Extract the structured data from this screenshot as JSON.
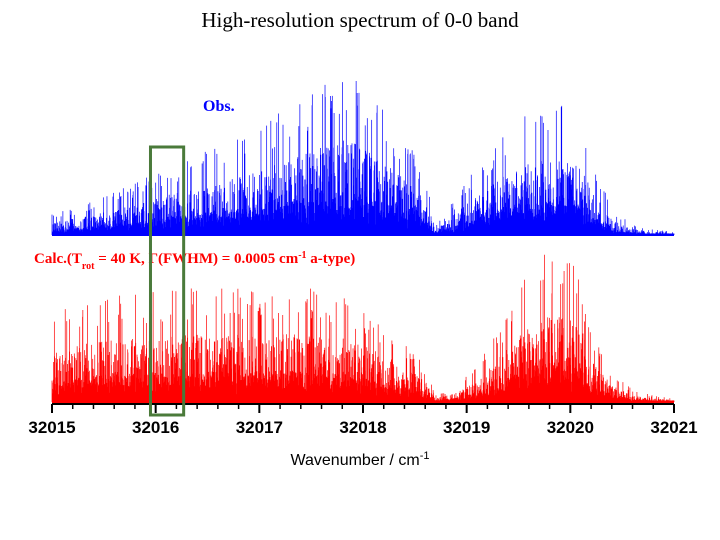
{
  "chart_data": {
    "type": "line",
    "title": "High-resolution spectrum of 0-0 band",
    "xlabel": "Wavenumber / cm",
    "xlabel_sup": "-1",
    "xlim": [
      32015,
      32021
    ],
    "x_ticks": [
      "32015",
      "32016",
      "32017",
      "32018",
      "32019",
      "32020",
      "32021"
    ],
    "y_axis_shown": false,
    "grid": false,
    "series": [
      {
        "name": "Obs.",
        "color": "#0000ff",
        "envelope": {
          "x": [
            32015.0,
            32015.3,
            32015.6,
            32015.9,
            32016.2,
            32016.5,
            32016.8,
            32017.0,
            32017.2,
            32017.4,
            32017.6,
            32017.8,
            32018.0,
            32018.2,
            32018.4,
            32018.6,
            32018.7,
            32018.9,
            32019.1,
            32019.3,
            32019.5,
            32019.7,
            32019.9,
            32020.1,
            32020.2,
            32020.4,
            32020.6,
            32020.8,
            32021.0
          ],
          "y": [
            0.12,
            0.18,
            0.25,
            0.33,
            0.42,
            0.5,
            0.58,
            0.62,
            0.72,
            0.8,
            0.88,
            0.95,
            0.88,
            0.72,
            0.55,
            0.38,
            0.06,
            0.22,
            0.4,
            0.55,
            0.66,
            0.75,
            0.78,
            0.68,
            0.45,
            0.15,
            0.06,
            0.03,
            0.02
          ]
        }
      },
      {
        "name": "Calc.",
        "label_parts": {
          "prefix": "Calc.(T",
          "sub": "rot",
          "mid": " = 40 K, Γ(FWHM) = 0.0005 cm",
          "sup": "-1",
          "suffix": " a-type)"
        },
        "color": "#ff0000",
        "envelope": {
          "x": [
            32015.0,
            32015.3,
            32015.6,
            32015.9,
            32016.2,
            32016.5,
            32016.8,
            32017.0,
            32017.2,
            32017.4,
            32017.6,
            32017.8,
            32018.0,
            32018.2,
            32018.4,
            32018.6,
            32018.7,
            32018.9,
            32019.1,
            32019.3,
            32019.5,
            32019.7,
            32019.9,
            32020.1,
            32020.2,
            32020.4,
            32020.6,
            32020.8,
            32021.0
          ],
          "y": [
            0.55,
            0.62,
            0.66,
            0.68,
            0.7,
            0.72,
            0.72,
            0.72,
            0.72,
            0.72,
            0.7,
            0.68,
            0.6,
            0.5,
            0.38,
            0.22,
            0.04,
            0.1,
            0.22,
            0.45,
            0.72,
            0.9,
            0.95,
            0.82,
            0.45,
            0.18,
            0.08,
            0.04,
            0.02
          ]
        }
      }
    ],
    "highlight_box": {
      "x_range": [
        32015.95,
        32016.27
      ],
      "color": "#4a7a3a"
    }
  }
}
